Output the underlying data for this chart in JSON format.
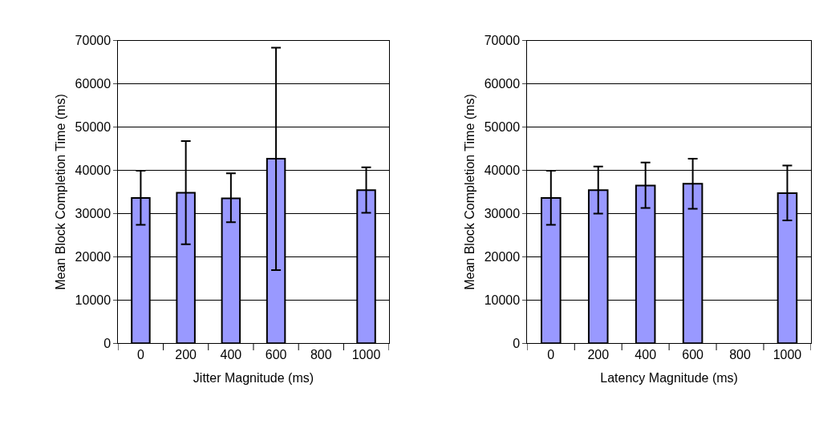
{
  "chart_data": [
    {
      "type": "bar",
      "xlabel": "Jitter Magnitude (ms)",
      "ylabel": "Mean Block Completion Time (ms)",
      "categories": [
        "0",
        "200",
        "400",
        "600",
        "800",
        "1000"
      ],
      "values": [
        33600,
        34800,
        33500,
        42700,
        null,
        35400
      ],
      "color": "#9999ff",
      "errors": [
        [
          27400,
          39900
        ],
        [
          22900,
          46800
        ],
        [
          28000,
          39300
        ],
        [
          16900,
          68400
        ],
        null,
        [
          30200,
          40700
        ]
      ],
      "ylim": [
        0,
        70000
      ],
      "yticks": [
        0,
        10000,
        20000,
        30000,
        40000,
        50000,
        60000,
        70000
      ],
      "grid": "y"
    },
    {
      "type": "bar",
      "xlabel": "Latency Magnitude (ms)",
      "ylabel": "Mean Block Completion Time (ms)",
      "categories": [
        "0",
        "200",
        "400",
        "600",
        "800",
        "1000"
      ],
      "values": [
        33600,
        35400,
        36500,
        36900,
        null,
        34700
      ],
      "color": "#9999ff",
      "errors": [
        [
          27400,
          39900
        ],
        [
          30000,
          40900
        ],
        [
          31300,
          41800
        ],
        [
          31100,
          42700
        ],
        null,
        [
          28400,
          41100
        ]
      ],
      "ylim": [
        0,
        70000
      ],
      "yticks": [
        0,
        10000,
        20000,
        30000,
        40000,
        50000,
        60000,
        70000
      ],
      "grid": "y"
    }
  ]
}
